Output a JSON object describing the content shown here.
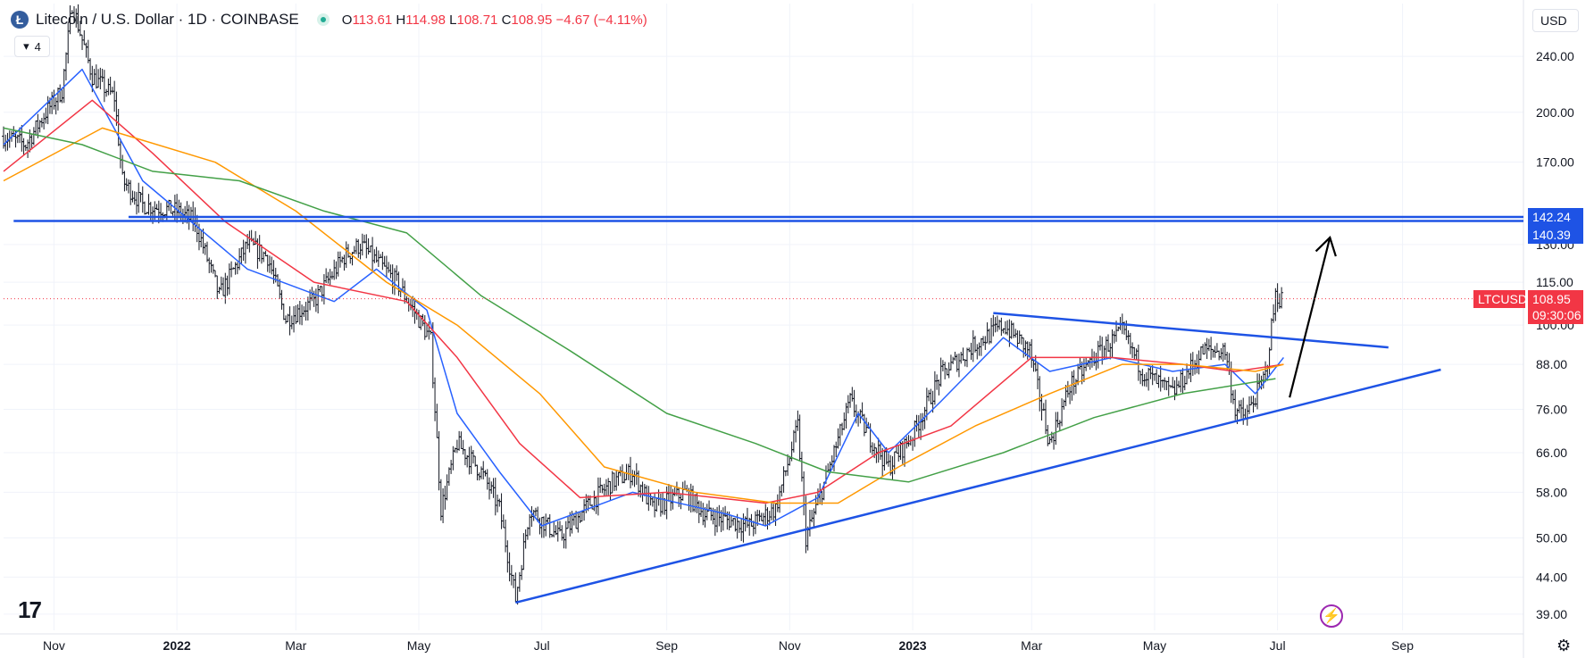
{
  "header": {
    "symbol_title": "Litecoin / U.S. Dollar · 1D · COINBASE",
    "coin_glyph": "Ł",
    "ohlc": {
      "open_label": "O",
      "open": "113.61",
      "high_label": "H",
      "high": "114.98",
      "low_label": "L",
      "low": "108.71",
      "close_label": "C",
      "close": "108.95",
      "change": "−4.67 (−4.11%)"
    },
    "indicator_count": "4"
  },
  "currency_button": "USD",
  "price_tags": {
    "level_high": "142.24",
    "level_low": "140.39",
    "symbol": "LTCUSD",
    "last_price": "108.95",
    "countdown": "09:30:06"
  },
  "icons": [
    "litecoin-logo-icon",
    "market-status-icon",
    "eye-icon",
    "tradingview-logo-icon",
    "flash-icon",
    "gear-icon"
  ],
  "colors": {
    "background": "#ffffff",
    "price_bars": "#131722",
    "ma_blue": "#2962ff",
    "ma_red": "#f23645",
    "ma_orange": "#ff9800",
    "ma_green": "#43a047",
    "trendlines": "#1e53e5",
    "last_price": "#f23645",
    "arrow": "#000000"
  },
  "chart_data": {
    "type": "bar",
    "title": "Litecoin / U.S. Dollar · 1D · COINBASE",
    "scale": "log",
    "ylim": [
      37,
      285
    ],
    "y_ticks": [
      39,
      44,
      50,
      58,
      66,
      76,
      88,
      100,
      115,
      130,
      140.39,
      142.24,
      170,
      200,
      240
    ],
    "y_tick_labels": [
      "39.00",
      "44.00",
      "50.00",
      "58.00",
      "66.00",
      "76.00",
      "88.00",
      "100.00",
      "115.00",
      "130.00",
      "140.39",
      "142.24",
      "170.00",
      "200.00",
      "240.00"
    ],
    "x_range": [
      "2021-10-07",
      "2023-10-31"
    ],
    "x_ticks": [
      {
        "date": "2021-11-01",
        "label": "Nov"
      },
      {
        "date": "2022-01-01",
        "label": "2022"
      },
      {
        "date": "2022-03-01",
        "label": "Mar"
      },
      {
        "date": "2022-05-01",
        "label": "May"
      },
      {
        "date": "2022-07-01",
        "label": "Jul"
      },
      {
        "date": "2022-09-01",
        "label": "Sep"
      },
      {
        "date": "2022-11-01",
        "label": "Nov"
      },
      {
        "date": "2023-01-01",
        "label": "2023"
      },
      {
        "date": "2023-03-01",
        "label": "Mar"
      },
      {
        "date": "2023-05-01",
        "label": "May"
      },
      {
        "date": "2023-07-01",
        "label": "Jul"
      },
      {
        "date": "2023-09-01",
        "label": "Sep"
      }
    ],
    "last_price": 108.95,
    "price_path": [
      [
        "2021-10-07",
        185
      ],
      [
        "2021-10-18",
        180
      ],
      [
        "2021-10-28",
        200
      ],
      [
        "2021-11-05",
        215
      ],
      [
        "2021-11-10",
        285
      ],
      [
        "2021-11-20",
        225
      ],
      [
        "2021-12-01",
        210
      ],
      [
        "2021-12-05",
        160
      ],
      [
        "2021-12-15",
        148
      ],
      [
        "2022-01-01",
        145
      ],
      [
        "2022-01-10",
        140
      ],
      [
        "2022-01-22",
        110
      ],
      [
        "2022-02-05",
        130
      ],
      [
        "2022-02-15",
        125
      ],
      [
        "2022-02-24",
        102
      ],
      [
        "2022-03-10",
        108
      ],
      [
        "2022-03-25",
        125
      ],
      [
        "2022-04-02",
        130
      ],
      [
        "2022-04-20",
        115
      ],
      [
        "2022-05-01",
        102
      ],
      [
        "2022-05-07",
        95
      ],
      [
        "2022-05-12",
        55
      ],
      [
        "2022-05-20",
        68
      ],
      [
        "2022-06-01",
        62
      ],
      [
        "2022-06-10",
        55
      ],
      [
        "2022-06-18",
        41
      ],
      [
        "2022-06-25",
        55
      ],
      [
        "2022-07-10",
        50
      ],
      [
        "2022-07-25",
        56
      ],
      [
        "2022-08-05",
        60
      ],
      [
        "2022-08-15",
        62
      ],
      [
        "2022-08-25",
        55
      ],
      [
        "2022-09-10",
        58
      ],
      [
        "2022-09-20",
        54
      ],
      [
        "2022-10-01",
        53
      ],
      [
        "2022-10-12",
        52
      ],
      [
        "2022-10-25",
        55
      ],
      [
        "2022-11-05",
        72
      ],
      [
        "2022-11-09",
        50
      ],
      [
        "2022-11-20",
        62
      ],
      [
        "2022-12-01",
        78
      ],
      [
        "2022-12-10",
        70
      ],
      [
        "2022-12-20",
        63
      ],
      [
        "2023-01-01",
        70
      ],
      [
        "2023-01-15",
        85
      ],
      [
        "2023-02-01",
        94
      ],
      [
        "2023-02-15",
        100
      ],
      [
        "2023-02-28",
        92
      ],
      [
        "2023-03-10",
        68
      ],
      [
        "2023-03-20",
        82
      ],
      [
        "2023-04-01",
        90
      ],
      [
        "2023-04-15",
        98
      ],
      [
        "2023-04-25",
        86
      ],
      [
        "2023-05-10",
        80
      ],
      [
        "2023-05-25",
        92
      ],
      [
        "2023-06-05",
        92
      ],
      [
        "2023-06-10",
        76
      ],
      [
        "2023-06-15",
        74
      ],
      [
        "2023-06-25",
        85
      ],
      [
        "2023-06-30",
        110
      ],
      [
        "2023-07-03",
        108.95
      ]
    ],
    "moving_averages": [
      {
        "color": "#2962ff",
        "points": [
          [
            "2021-10-07",
            180
          ],
          [
            "2021-11-15",
            230
          ],
          [
            "2021-12-15",
            160
          ],
          [
            "2022-02-05",
            120
          ],
          [
            "2022-03-20",
            108
          ],
          [
            "2022-04-10",
            120
          ],
          [
            "2022-05-05",
            105
          ],
          [
            "2022-05-20",
            75
          ],
          [
            "2022-06-10",
            62
          ],
          [
            "2022-07-01",
            52
          ],
          [
            "2022-08-15",
            58
          ],
          [
            "2022-10-01",
            54
          ],
          [
            "2022-10-20",
            52
          ],
          [
            "2022-11-15",
            57
          ],
          [
            "2022-12-05",
            75
          ],
          [
            "2022-12-20",
            66
          ],
          [
            "2023-01-15",
            78
          ],
          [
            "2023-02-15",
            96
          ],
          [
            "2023-03-10",
            86
          ],
          [
            "2023-04-10",
            90
          ],
          [
            "2023-05-10",
            86
          ],
          [
            "2023-06-05",
            88
          ],
          [
            "2023-06-20",
            80
          ],
          [
            "2023-07-04",
            90
          ]
        ]
      },
      {
        "color": "#f23645",
        "points": [
          [
            "2021-10-07",
            165
          ],
          [
            "2021-11-20",
            208
          ],
          [
            "2021-12-20",
            175
          ],
          [
            "2022-01-25",
            140
          ],
          [
            "2022-03-10",
            115
          ],
          [
            "2022-04-25",
            108
          ],
          [
            "2022-05-20",
            90
          ],
          [
            "2022-06-20",
            68
          ],
          [
            "2022-07-20",
            57
          ],
          [
            "2022-09-01",
            58
          ],
          [
            "2022-10-20",
            56
          ],
          [
            "2022-11-15",
            58
          ],
          [
            "2022-12-15",
            66
          ],
          [
            "2023-01-20",
            72
          ],
          [
            "2023-03-01",
            90
          ],
          [
            "2023-04-10",
            90
          ],
          [
            "2023-05-15",
            88
          ],
          [
            "2023-06-10",
            86
          ],
          [
            "2023-07-04",
            88
          ]
        ]
      },
      {
        "color": "#ff9800",
        "points": [
          [
            "2021-10-07",
            160
          ],
          [
            "2021-11-25",
            190
          ],
          [
            "2022-01-20",
            170
          ],
          [
            "2022-03-01",
            145
          ],
          [
            "2022-04-15",
            115
          ],
          [
            "2022-05-20",
            100
          ],
          [
            "2022-06-30",
            80
          ],
          [
            "2022-08-01",
            63
          ],
          [
            "2022-09-15",
            58
          ],
          [
            "2022-10-25",
            56
          ],
          [
            "2022-11-25",
            56
          ],
          [
            "2022-12-25",
            63
          ],
          [
            "2023-02-01",
            72
          ],
          [
            "2023-03-10",
            80
          ],
          [
            "2023-04-15",
            88
          ],
          [
            "2023-05-15",
            88
          ],
          [
            "2023-06-20",
            86
          ],
          [
            "2023-07-04",
            88
          ]
        ]
      },
      {
        "color": "#43a047",
        "points": [
          [
            "2021-10-07",
            190
          ],
          [
            "2021-11-15",
            180
          ],
          [
            "2021-12-20",
            165
          ],
          [
            "2022-02-01",
            160
          ],
          [
            "2022-03-15",
            145
          ],
          [
            "2022-04-25",
            135
          ],
          [
            "2022-06-01",
            110
          ],
          [
            "2022-07-15",
            92
          ],
          [
            "2022-09-01",
            75
          ],
          [
            "2022-10-15",
            68
          ],
          [
            "2022-11-20",
            62
          ],
          [
            "2022-12-30",
            60
          ],
          [
            "2023-02-15",
            66
          ],
          [
            "2023-04-01",
            74
          ],
          [
            "2023-05-15",
            80
          ],
          [
            "2023-06-30",
            84
          ]
        ]
      }
    ],
    "annotations": [
      {
        "kind": "horizontal_line",
        "value": 140.39,
        "from": "2021-10-12"
      },
      {
        "kind": "horizontal_line",
        "value": 142.24,
        "from": "2021-12-08"
      },
      {
        "kind": "trendline",
        "from": [
          "2022-06-18",
          40.5
        ],
        "to": [
          "2023-09-20",
          86.5
        ]
      },
      {
        "kind": "trendline",
        "from": [
          "2023-02-10",
          104
        ],
        "to": [
          "2023-08-25",
          93
        ]
      },
      {
        "kind": "arrow",
        "from": [
          "2023-07-07",
          79
        ],
        "to": [
          "2023-07-27",
          133
        ]
      }
    ]
  }
}
